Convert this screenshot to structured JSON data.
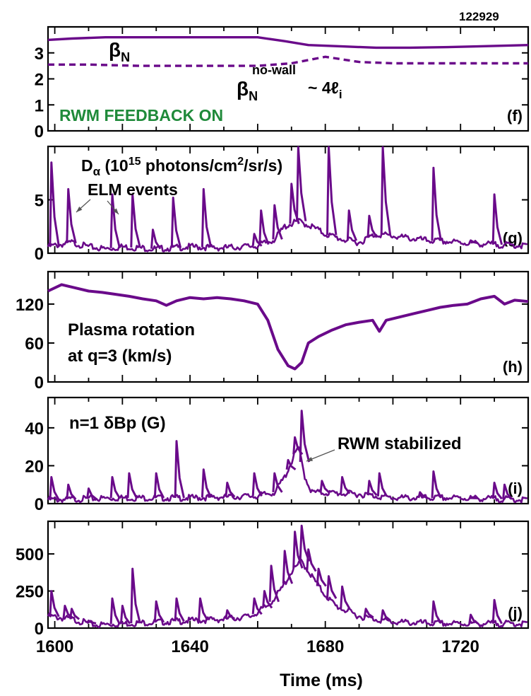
{
  "figure": {
    "shot_number": "122929",
    "xlabel": "Time (ms)"
  },
  "colors": {
    "trace": "#6a0a8a",
    "green_text": "#1f8a3a",
    "axis": "#000000"
  },
  "chart_data": [
    {
      "type": "line",
      "panel_label": "(f)",
      "xlim": [
        1598,
        1740
      ],
      "ylim": [
        0,
        4
      ],
      "yticks": [
        0,
        1,
        2,
        3
      ],
      "annotations": {
        "beta_n": "β",
        "beta_n_sub": "N",
        "beta_nowall": "β",
        "beta_nowall_sup": "no-wall",
        "beta_nowall_sub": "N",
        "beta_nowall_tail": "~ 4ℓ",
        "beta_nowall_tail_sub": "i",
        "feedback": "RWM FEEDBACK ON"
      },
      "series": [
        {
          "style": "solid",
          "x": [
            1598,
            1605,
            1615,
            1625,
            1635,
            1645,
            1660,
            1668,
            1675,
            1685,
            1695,
            1705,
            1715,
            1725,
            1740
          ],
          "y": [
            3.5,
            3.55,
            3.6,
            3.6,
            3.6,
            3.6,
            3.6,
            3.45,
            3.3,
            3.25,
            3.2,
            3.2,
            3.22,
            3.25,
            3.3
          ]
        },
        {
          "style": "dashed",
          "x": [
            1598,
            1610,
            1625,
            1640,
            1660,
            1670,
            1680,
            1690,
            1700,
            1715,
            1740
          ],
          "y": [
            2.55,
            2.55,
            2.5,
            2.5,
            2.5,
            2.6,
            2.85,
            2.65,
            2.6,
            2.6,
            2.6
          ]
        }
      ]
    },
    {
      "type": "line",
      "panel_label": "(g)",
      "xlim": [
        1598,
        1740
      ],
      "ylim": [
        0,
        10
      ],
      "yticks": [
        0,
        5
      ],
      "annotations": {
        "title_main": "D",
        "title_sub": "α",
        "title_rest_a": " (10",
        "title_sup_a": "15",
        "title_rest_b": " photons/cm",
        "title_sup_b": "2",
        "title_rest_c": "/sr/s)",
        "elm": "ELM events"
      },
      "baseline": [
        [
          1598,
          0.6
        ],
        [
          1605,
          1.0
        ],
        [
          1610,
          0.6
        ],
        [
          1615,
          0.4
        ],
        [
          1620,
          0.6
        ],
        [
          1625,
          0.5
        ],
        [
          1630,
          0.4
        ],
        [
          1640,
          0.6
        ],
        [
          1650,
          0.5
        ],
        [
          1660,
          0.7
        ],
        [
          1665,
          1.3
        ],
        [
          1668,
          2.5
        ],
        [
          1672,
          3.0
        ],
        [
          1676,
          2.5
        ],
        [
          1680,
          1.8
        ],
        [
          1685,
          1.3
        ],
        [
          1690,
          1.0
        ],
        [
          1695,
          1.8
        ],
        [
          1700,
          1.6
        ],
        [
          1705,
          1.4
        ],
        [
          1710,
          1.2
        ],
        [
          1720,
          1.0
        ],
        [
          1730,
          0.8
        ],
        [
          1740,
          0.7
        ]
      ],
      "spikes": [
        {
          "x": 1599,
          "y": 8.5
        },
        {
          "x": 1604,
          "y": 6.0
        },
        {
          "x": 1617,
          "y": 5.5
        },
        {
          "x": 1623,
          "y": 5.5
        },
        {
          "x": 1629,
          "y": 2.2
        },
        {
          "x": 1635,
          "y": 5.2
        },
        {
          "x": 1644,
          "y": 6.0
        },
        {
          "x": 1659,
          "y": 1.8
        },
        {
          "x": 1661,
          "y": 4.0
        },
        {
          "x": 1665,
          "y": 4.5
        },
        {
          "x": 1670,
          "y": 6.5
        },
        {
          "x": 1672,
          "y": 10.5
        },
        {
          "x": 1681,
          "y": 10.5
        },
        {
          "x": 1687,
          "y": 4.0
        },
        {
          "x": 1693,
          "y": 3.5
        },
        {
          "x": 1697,
          "y": 10.5
        },
        {
          "x": 1712,
          "y": 8.0
        },
        {
          "x": 1723,
          "y": 1.2
        },
        {
          "x": 1730,
          "y": 5.5
        }
      ]
    },
    {
      "type": "line",
      "panel_label": "(h)",
      "xlim": [
        1598,
        1740
      ],
      "ylim": [
        0,
        170
      ],
      "yticks": [
        0,
        60,
        120
      ],
      "annotations": {
        "label_line1": "Plasma rotation",
        "label_line2": "at q=3 (km/s)"
      },
      "x": [
        1598,
        1602,
        1606,
        1610,
        1614,
        1618,
        1622,
        1626,
        1630,
        1633,
        1636,
        1640,
        1644,
        1648,
        1652,
        1656,
        1660,
        1663,
        1666,
        1669,
        1671,
        1673,
        1675,
        1678,
        1682,
        1686,
        1690,
        1694,
        1696,
        1698,
        1702,
        1706,
        1710,
        1714,
        1718,
        1722,
        1726,
        1730,
        1733,
        1736,
        1740
      ],
      "y": [
        140,
        150,
        145,
        140,
        138,
        135,
        132,
        128,
        125,
        118,
        125,
        130,
        128,
        130,
        128,
        125,
        120,
        95,
        50,
        25,
        20,
        30,
        60,
        70,
        80,
        88,
        92,
        95,
        78,
        95,
        100,
        105,
        110,
        115,
        118,
        120,
        128,
        132,
        120,
        126,
        124
      ]
    },
    {
      "type": "line",
      "panel_label": "(i)",
      "xlim": [
        1598,
        1740
      ],
      "ylim": [
        0,
        56
      ],
      "yticks": [
        0,
        20,
        40
      ],
      "annotations": {
        "label": "n=1 δBp (G)",
        "rwm": "RWM stabilized"
      },
      "baseline": [
        [
          1598,
          2
        ],
        [
          1620,
          3
        ],
        [
          1640,
          3
        ],
        [
          1660,
          4
        ],
        [
          1665,
          6
        ],
        [
          1668,
          14
        ],
        [
          1670,
          22
        ],
        [
          1672,
          30
        ],
        [
          1674,
          14
        ],
        [
          1676,
          6
        ],
        [
          1690,
          5
        ],
        [
          1700,
          3
        ],
        [
          1720,
          3
        ],
        [
          1740,
          2
        ]
      ],
      "spikes": [
        {
          "x": 1599,
          "y": 14
        },
        {
          "x": 1604,
          "y": 10
        },
        {
          "x": 1610,
          "y": 8
        },
        {
          "x": 1617,
          "y": 14
        },
        {
          "x": 1622,
          "y": 16
        },
        {
          "x": 1630,
          "y": 16
        },
        {
          "x": 1636,
          "y": 33
        },
        {
          "x": 1644,
          "y": 18
        },
        {
          "x": 1651,
          "y": 11
        },
        {
          "x": 1659,
          "y": 16
        },
        {
          "x": 1665,
          "y": 16
        },
        {
          "x": 1669,
          "y": 23
        },
        {
          "x": 1671,
          "y": 35
        },
        {
          "x": 1673,
          "y": 49
        },
        {
          "x": 1679,
          "y": 12
        },
        {
          "x": 1685,
          "y": 14
        },
        {
          "x": 1693,
          "y": 12
        },
        {
          "x": 1696,
          "y": 16
        },
        {
          "x": 1708,
          "y": 6
        },
        {
          "x": 1712,
          "y": 17
        },
        {
          "x": 1723,
          "y": 3
        },
        {
          "x": 1730,
          "y": 11
        },
        {
          "x": 1733,
          "y": 10
        }
      ]
    },
    {
      "type": "line",
      "panel_label": "(j)",
      "xlim": [
        1598,
        1740
      ],
      "ylim": [
        0,
        720
      ],
      "yticks": [
        0,
        250,
        500
      ],
      "xticks": [
        1600,
        1640,
        1680,
        1720
      ],
      "baseline": [
        [
          1598,
          80
        ],
        [
          1605,
          60
        ],
        [
          1612,
          20
        ],
        [
          1620,
          30
        ],
        [
          1630,
          40
        ],
        [
          1640,
          50
        ],
        [
          1650,
          60
        ],
        [
          1658,
          80
        ],
        [
          1663,
          150
        ],
        [
          1667,
          260
        ],
        [
          1670,
          380
        ],
        [
          1673,
          450
        ],
        [
          1676,
          350
        ],
        [
          1679,
          250
        ],
        [
          1683,
          150
        ],
        [
          1690,
          80
        ],
        [
          1700,
          40
        ],
        [
          1715,
          30
        ],
        [
          1730,
          30
        ],
        [
          1740,
          30
        ]
      ],
      "spikes": [
        {
          "x": 1599,
          "y": 250
        },
        {
          "x": 1603,
          "y": 150
        },
        {
          "x": 1605,
          "y": 130
        },
        {
          "x": 1610,
          "y": 50
        },
        {
          "x": 1617,
          "y": 200
        },
        {
          "x": 1620,
          "y": 150
        },
        {
          "x": 1623,
          "y": 400
        },
        {
          "x": 1630,
          "y": 180
        },
        {
          "x": 1636,
          "y": 200
        },
        {
          "x": 1643,
          "y": 200
        },
        {
          "x": 1651,
          "y": 120
        },
        {
          "x": 1659,
          "y": 200
        },
        {
          "x": 1662,
          "y": 250
        },
        {
          "x": 1664,
          "y": 420
        },
        {
          "x": 1668,
          "y": 520
        },
        {
          "x": 1671,
          "y": 650
        },
        {
          "x": 1673,
          "y": 690
        },
        {
          "x": 1675,
          "y": 530
        },
        {
          "x": 1678,
          "y": 400
        },
        {
          "x": 1681,
          "y": 350
        },
        {
          "x": 1685,
          "y": 280
        },
        {
          "x": 1692,
          "y": 130
        },
        {
          "x": 1697,
          "y": 120
        },
        {
          "x": 1712,
          "y": 180
        },
        {
          "x": 1723,
          "y": 90
        },
        {
          "x": 1730,
          "y": 190
        }
      ]
    }
  ]
}
